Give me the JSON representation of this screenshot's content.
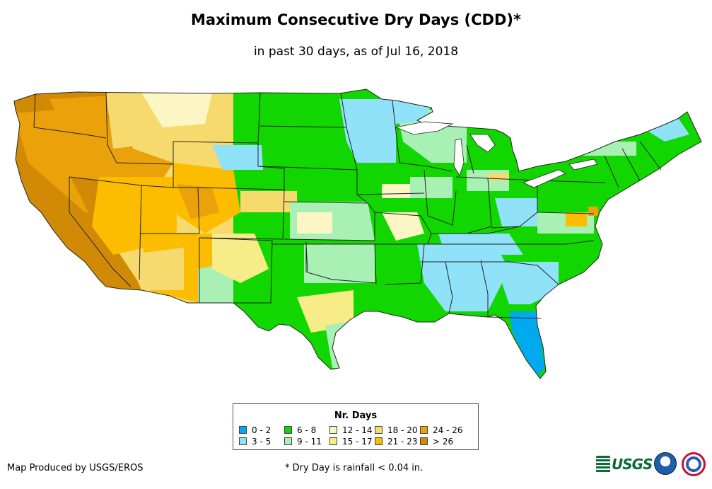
{
  "map": {
    "title": "Maximum Consecutive Dry Days (CDD)*",
    "subtitle": "in past 30 days, as of Jul 16, 2018",
    "legend": {
      "title": "Nr. Days",
      "items": [
        {
          "label": "0 - 2",
          "color": "#00a9f0"
        },
        {
          "label": "3 - 5",
          "color": "#8fe2f7"
        },
        {
          "label": "6 - 8",
          "color": "#11d600"
        },
        {
          "label": "9 - 11",
          "color": "#a8f0b4"
        },
        {
          "label": "12 - 14",
          "color": "#fbf6c3"
        },
        {
          "label": "15 - 17",
          "color": "#f8ec88"
        },
        {
          "label": "18 - 20",
          "color": "#f7da6d"
        },
        {
          "label": "21 - 23",
          "color": "#fcbd00"
        },
        {
          "label": "24 - 26",
          "color": "#eba10a"
        },
        {
          "label": "> 26",
          "color": "#d08a05"
        }
      ]
    },
    "credit": "Map Produced by USGS/EROS",
    "footnote": "* Dry Day is rainfall < 0.04 in.",
    "logos": {
      "usgs": "USGS",
      "usgs_icon": "usgs-logo",
      "noaa_icon": "noaa-logo",
      "nws_icon": "nws-logo"
    }
  }
}
